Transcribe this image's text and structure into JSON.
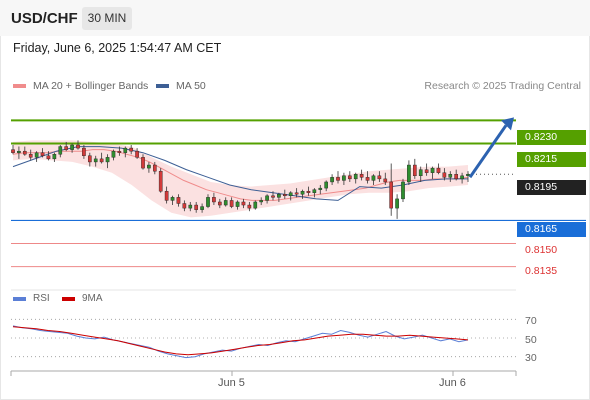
{
  "header": {
    "pair": "USD/CHF",
    "timeframe": "30 MIN"
  },
  "datetime": "Friday, June 6, 2025 1:54:47 AM CET",
  "legend": {
    "bollinger": {
      "label": "MA 20 + Bollinger Bands",
      "color": "#f08c8c"
    },
    "ma50": {
      "label": "MA 50",
      "color": "#3d5f95"
    }
  },
  "credit": "Research © 2025 Trading Central",
  "levels": {
    "r2": {
      "label": "0.8230",
      "value": 0.823,
      "color": "#55a000"
    },
    "r1": {
      "label": "0.8215",
      "value": 0.8215,
      "color": "#55a000"
    },
    "last": {
      "label": "0.8195",
      "value": 0.8195,
      "color": "#222222"
    },
    "pivot": {
      "label": "0.8165",
      "value": 0.8165,
      "color": "#1a6ed8"
    },
    "s1": {
      "label": "0.8150",
      "value": 0.815,
      "color": "#e06060"
    },
    "s2": {
      "label": "0.8135",
      "value": 0.8135,
      "color": "#e06060"
    }
  },
  "indicator": {
    "rsi_label": "RSI",
    "rsi_color": "#5b7fd6",
    "ma_label": "9MA",
    "ma_color": "#cc0000",
    "levels": [
      "70",
      "50",
      "30"
    ]
  },
  "x_labels": [
    "Jun 5",
    "Jun 6"
  ],
  "chart_data": {
    "type": "candlestick",
    "ylim": [
      0.8125,
      0.824
    ],
    "candles": [
      [
        0.8211,
        0.8214,
        0.8208,
        0.8209
      ],
      [
        0.8209,
        0.8213,
        0.8205,
        0.821
      ],
      [
        0.821,
        0.8213,
        0.8207,
        0.8208
      ],
      [
        0.8208,
        0.8211,
        0.8204,
        0.8206
      ],
      [
        0.8206,
        0.821,
        0.8203,
        0.8209
      ],
      [
        0.8209,
        0.8212,
        0.8206,
        0.8207
      ],
      [
        0.8207,
        0.821,
        0.8204,
        0.8205
      ],
      [
        0.8205,
        0.8209,
        0.8203,
        0.8208
      ],
      [
        0.8208,
        0.8214,
        0.8206,
        0.8213
      ],
      [
        0.8213,
        0.8216,
        0.821,
        0.8211
      ],
      [
        0.8211,
        0.8215,
        0.8209,
        0.8214
      ],
      [
        0.8214,
        0.8217,
        0.8211,
        0.8212
      ],
      [
        0.8212,
        0.8214,
        0.8205,
        0.8207
      ],
      [
        0.8207,
        0.8209,
        0.82,
        0.8203
      ],
      [
        0.8203,
        0.8207,
        0.82,
        0.8205
      ],
      [
        0.8205,
        0.8209,
        0.8202,
        0.8203
      ],
      [
        0.8203,
        0.8208,
        0.8199,
        0.8206
      ],
      [
        0.8206,
        0.8211,
        0.8204,
        0.821
      ],
      [
        0.821,
        0.8213,
        0.8207,
        0.8209
      ],
      [
        0.8209,
        0.8213,
        0.8206,
        0.8212
      ],
      [
        0.8212,
        0.8214,
        0.8208,
        0.821
      ],
      [
        0.821,
        0.8212,
        0.8205,
        0.8206
      ],
      [
        0.8206,
        0.8208,
        0.8198,
        0.8199
      ],
      [
        0.8199,
        0.8203,
        0.8196,
        0.8201
      ],
      [
        0.8201,
        0.8203,
        0.8195,
        0.8197
      ],
      [
        0.8197,
        0.8199,
        0.8183,
        0.8184
      ],
      [
        0.8184,
        0.8187,
        0.8176,
        0.8178
      ],
      [
        0.8178,
        0.8181,
        0.8175,
        0.818
      ],
      [
        0.818,
        0.8182,
        0.8174,
        0.8176
      ],
      [
        0.8176,
        0.8178,
        0.8171,
        0.8173
      ],
      [
        0.8173,
        0.8177,
        0.8171,
        0.8175
      ],
      [
        0.8175,
        0.8177,
        0.817,
        0.8172
      ],
      [
        0.8172,
        0.8176,
        0.817,
        0.8174
      ],
      [
        0.8174,
        0.8182,
        0.8173,
        0.818
      ],
      [
        0.818,
        0.8183,
        0.8175,
        0.8177
      ],
      [
        0.8177,
        0.8179,
        0.8173,
        0.8175
      ],
      [
        0.8175,
        0.818,
        0.8174,
        0.8178
      ],
      [
        0.8178,
        0.818,
        0.8173,
        0.8174
      ],
      [
        0.8174,
        0.8178,
        0.8172,
        0.8177
      ],
      [
        0.8177,
        0.8179,
        0.8173,
        0.8175
      ],
      [
        0.8175,
        0.8177,
        0.8171,
        0.8173
      ],
      [
        0.8173,
        0.8178,
        0.8172,
        0.8177
      ],
      [
        0.8177,
        0.818,
        0.8175,
        0.8178
      ],
      [
        0.8178,
        0.8182,
        0.8176,
        0.8181
      ],
      [
        0.8181,
        0.8184,
        0.8178,
        0.818
      ],
      [
        0.818,
        0.8183,
        0.8177,
        0.8182
      ],
      [
        0.8182,
        0.8185,
        0.8179,
        0.8181
      ],
      [
        0.8181,
        0.8184,
        0.8178,
        0.8183
      ],
      [
        0.8183,
        0.8186,
        0.818,
        0.8182
      ],
      [
        0.8182,
        0.8185,
        0.8179,
        0.8184
      ],
      [
        0.8184,
        0.8187,
        0.8181,
        0.8183
      ],
      [
        0.8183,
        0.8186,
        0.818,
        0.8185
      ],
      [
        0.8185,
        0.8188,
        0.8182,
        0.8186
      ],
      [
        0.8186,
        0.8191,
        0.8184,
        0.819
      ],
      [
        0.819,
        0.8195,
        0.8188,
        0.8193
      ],
      [
        0.8193,
        0.8197,
        0.8189,
        0.8191
      ],
      [
        0.8191,
        0.8196,
        0.8188,
        0.8194
      ],
      [
        0.8194,
        0.8197,
        0.819,
        0.8192
      ],
      [
        0.8192,
        0.8196,
        0.8189,
        0.8195
      ],
      [
        0.8195,
        0.8198,
        0.8191,
        0.8193
      ],
      [
        0.8193,
        0.8197,
        0.8189,
        0.8191
      ],
      [
        0.8191,
        0.8195,
        0.8188,
        0.8194
      ],
      [
        0.8194,
        0.8197,
        0.819,
        0.8192
      ],
      [
        0.8192,
        0.8196,
        0.8188,
        0.819
      ],
      [
        0.819,
        0.8202,
        0.8168,
        0.8173
      ],
      [
        0.8173,
        0.8182,
        0.8166,
        0.8179
      ],
      [
        0.8179,
        0.8192,
        0.8177,
        0.819
      ],
      [
        0.819,
        0.8204,
        0.8188,
        0.8201
      ],
      [
        0.8201,
        0.8205,
        0.8192,
        0.8194
      ],
      [
        0.8194,
        0.82,
        0.819,
        0.8198
      ],
      [
        0.8198,
        0.8202,
        0.8194,
        0.8196
      ],
      [
        0.8196,
        0.82,
        0.8192,
        0.8199
      ],
      [
        0.8199,
        0.8202,
        0.8195,
        0.8196
      ],
      [
        0.8196,
        0.8199,
        0.8191,
        0.8193
      ],
      [
        0.8193,
        0.8197,
        0.819,
        0.8195
      ],
      [
        0.8195,
        0.8198,
        0.8191,
        0.8192
      ],
      [
        0.8192,
        0.8196,
        0.8189,
        0.8194
      ],
      [
        0.8194,
        0.8197,
        0.819,
        0.8195
      ]
    ],
    "ma20": [
      0.8208,
      0.8209,
      0.8209,
      0.8209,
      0.821,
      0.821,
      0.821,
      0.8211,
      0.8211,
      0.821,
      0.8208,
      0.8206,
      0.8203,
      0.8199,
      0.8195,
      0.8191,
      0.8188,
      0.8185,
      0.8183,
      0.8181,
      0.8179,
      0.8178,
      0.8178,
      0.8178,
      0.8179,
      0.818,
      0.8181,
      0.8182,
      0.8183,
      0.8184,
      0.8185,
      0.8186,
      0.8188,
      0.819,
      0.8191,
      0.8191,
      0.8191,
      0.8192,
      0.8192,
      0.8192,
      0.8193
    ],
    "bb_upper": [
      0.8216,
      0.8217,
      0.8217,
      0.8217,
      0.8216,
      0.8215,
      0.8213,
      0.8206,
      0.82,
      0.8195,
      0.819,
      0.8188,
      0.8187,
      0.8188,
      0.8189,
      0.8191,
      0.8193,
      0.8195,
      0.8197,
      0.8198,
      0.8199,
      0.82,
      0.82,
      0.8201
    ],
    "bb_lower": [
      0.8204,
      0.8205,
      0.8204,
      0.8203,
      0.82,
      0.8196,
      0.8188,
      0.8178,
      0.817,
      0.8167,
      0.8168,
      0.817,
      0.8172,
      0.8174,
      0.8176,
      0.8178,
      0.818,
      0.8182,
      0.8183,
      0.8183,
      0.8184,
      0.8186,
      0.8187,
      0.8188
    ],
    "ma50": [
      0.82,
      0.8205,
      0.821,
      0.8213,
      0.8213,
      0.8212,
      0.8209,
      0.8204,
      0.8198,
      0.8193,
      0.8188,
      0.8185,
      0.8183,
      0.8181,
      0.8179,
      0.8178,
      0.8187,
      0.8186,
      0.8188,
      0.8191,
      0.8192,
      0.8192
    ],
    "projection": {
      "from": 0.8195,
      "to": 0.823
    },
    "rsi": [
      63,
      61,
      60,
      58,
      57,
      56,
      55,
      52,
      50,
      49,
      51,
      48,
      46,
      44,
      42,
      40,
      36,
      33,
      31,
      29,
      30,
      33,
      35,
      37,
      36,
      39,
      41,
      43,
      42,
      45,
      47,
      46,
      49,
      52,
      55,
      54,
      58,
      56,
      53,
      51,
      54,
      57,
      52,
      49,
      51,
      53,
      50,
      47,
      49,
      46,
      48
    ],
    "rsi_ma": [
      62,
      61,
      60,
      58,
      57,
      55,
      53,
      51,
      49,
      47,
      44,
      41,
      38,
      35,
      33,
      32,
      33,
      34,
      36,
      38,
      40,
      42,
      43,
      45,
      47,
      48,
      50,
      52,
      53,
      54,
      54,
      53,
      52,
      52,
      53,
      52,
      51,
      50,
      49,
      48
    ],
    "rsi_ylim": [
      20,
      80
    ]
  }
}
